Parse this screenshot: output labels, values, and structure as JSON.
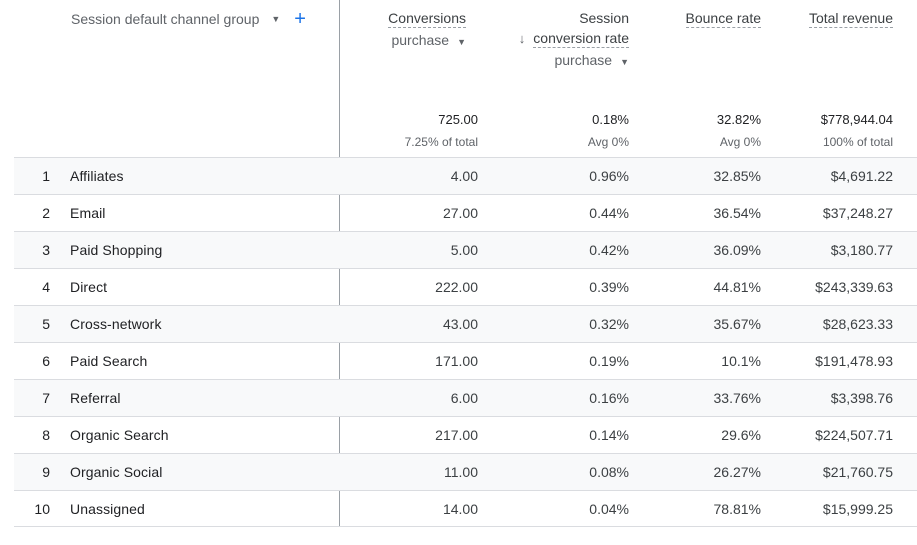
{
  "dimension": {
    "label": "Session default channel group",
    "caret_icon": "chevron-down-icon",
    "add_icon": "plus-icon",
    "add_symbol": "+"
  },
  "columns": [
    {
      "title": "Conversions",
      "subtitle": "purchase",
      "total": "725.00",
      "total_note": "7.25% of total"
    },
    {
      "title_line1": "Session",
      "title_line2": "conversion rate",
      "subtitle": "purchase",
      "sort_icon": "arrow-down-icon",
      "total": "0.18%",
      "total_note": "Avg 0%"
    },
    {
      "title": "Bounce rate",
      "total": "32.82%",
      "total_note": "Avg 0%"
    },
    {
      "title": "Total revenue",
      "total": "$778,944.04",
      "total_note": "100% of total"
    }
  ],
  "rows": [
    {
      "idx": "1",
      "name": "Affiliates",
      "conversions": "4.00",
      "conv_rate": "0.96%",
      "bounce": "32.85%",
      "revenue": "$4,691.22"
    },
    {
      "idx": "2",
      "name": "Email",
      "conversions": "27.00",
      "conv_rate": "0.44%",
      "bounce": "36.54%",
      "revenue": "$37,248.27"
    },
    {
      "idx": "3",
      "name": "Paid Shopping",
      "conversions": "5.00",
      "conv_rate": "0.42%",
      "bounce": "36.09%",
      "revenue": "$3,180.77"
    },
    {
      "idx": "4",
      "name": "Direct",
      "conversions": "222.00",
      "conv_rate": "0.39%",
      "bounce": "44.81%",
      "revenue": "$243,339.63"
    },
    {
      "idx": "5",
      "name": "Cross-network",
      "conversions": "43.00",
      "conv_rate": "0.32%",
      "bounce": "35.67%",
      "revenue": "$28,623.33"
    },
    {
      "idx": "6",
      "name": "Paid Search",
      "conversions": "171.00",
      "conv_rate": "0.19%",
      "bounce": "10.1%",
      "revenue": "$191,478.93"
    },
    {
      "idx": "7",
      "name": "Referral",
      "conversions": "6.00",
      "conv_rate": "0.16%",
      "bounce": "33.76%",
      "revenue": "$3,398.76"
    },
    {
      "idx": "8",
      "name": "Organic Search",
      "conversions": "217.00",
      "conv_rate": "0.14%",
      "bounce": "29.6%",
      "revenue": "$224,507.71"
    },
    {
      "idx": "9",
      "name": "Organic Social",
      "conversions": "11.00",
      "conv_rate": "0.08%",
      "bounce": "26.27%",
      "revenue": "$21,760.75"
    },
    {
      "idx": "10",
      "name": "Unassigned",
      "conversions": "14.00",
      "conv_rate": "0.04%",
      "bounce": "78.81%",
      "revenue": "$15,999.25"
    }
  ]
}
